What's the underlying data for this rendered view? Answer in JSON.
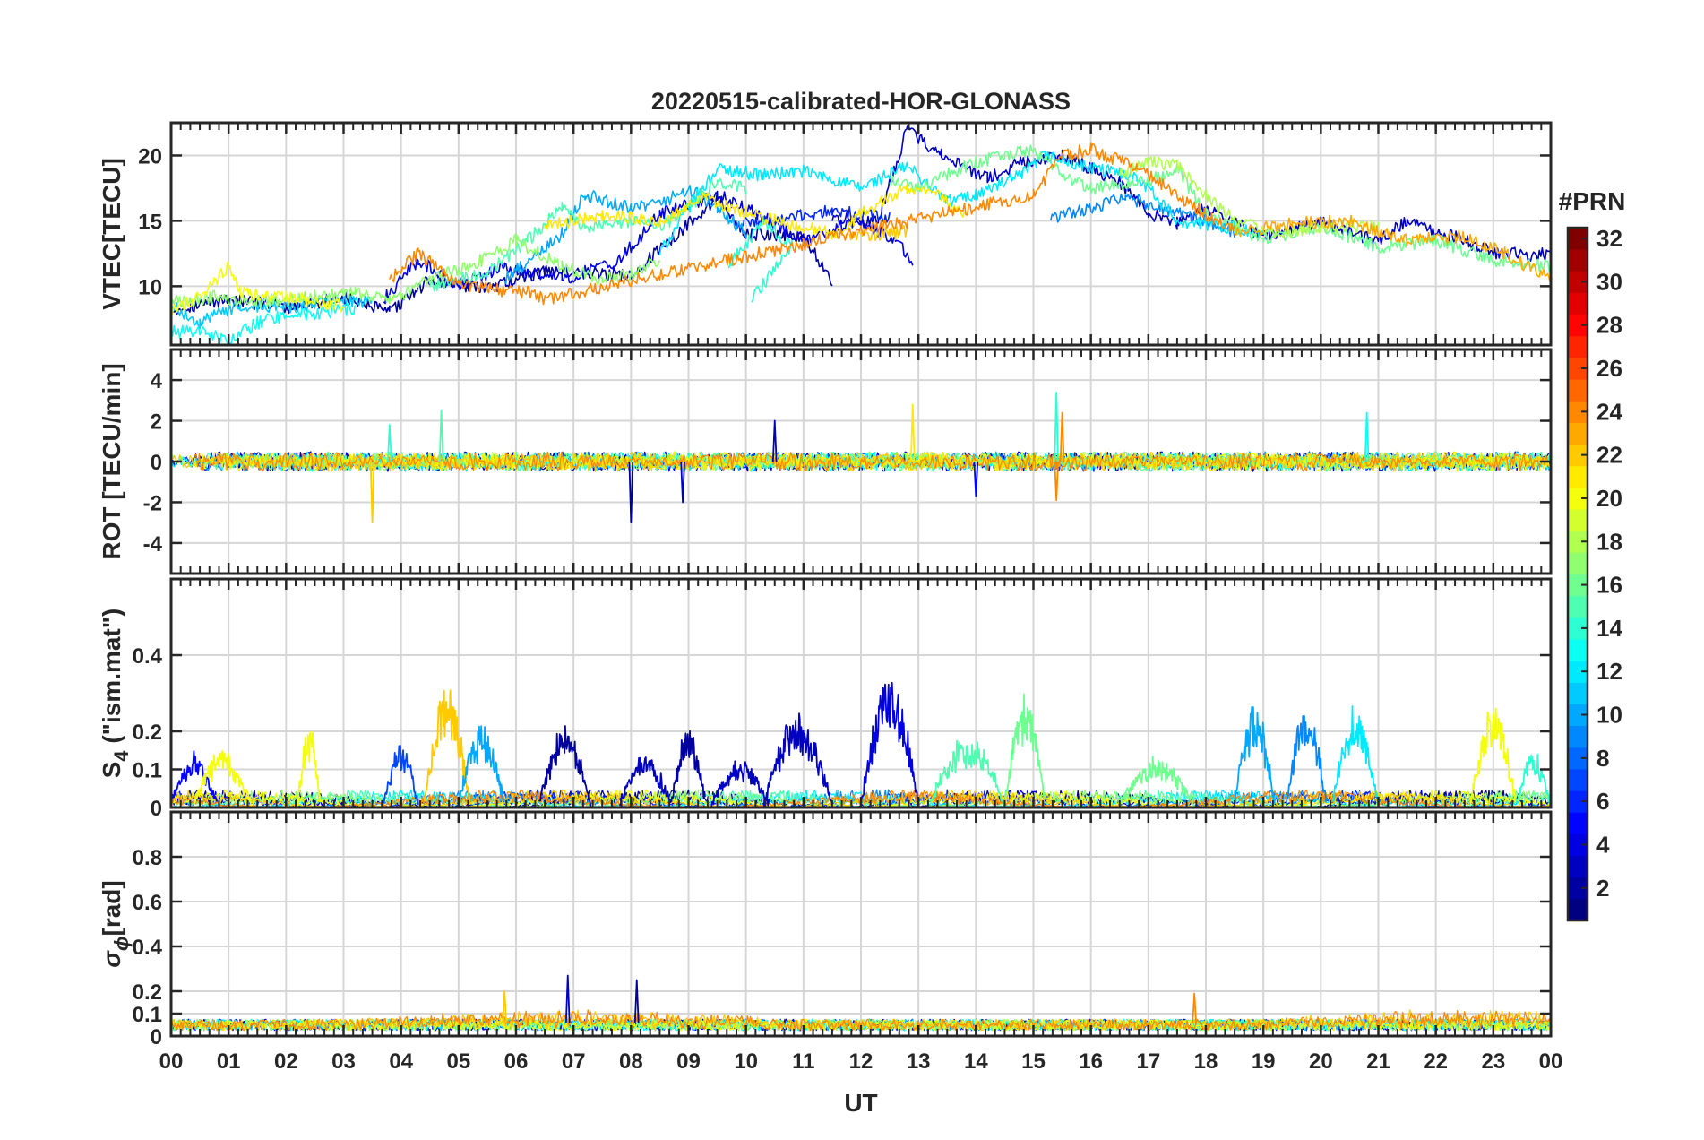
{
  "figure": {
    "title": "20220515-calibrated-HOR-GLONASS",
    "xlabel": "UT"
  },
  "chart_data": [
    {
      "type": "line",
      "panel": "vtec",
      "ylabel": "VTEC[TECU]",
      "ylim": [
        5.5,
        22.5
      ],
      "yticks": [
        10,
        15,
        20
      ],
      "xlim": [
        0,
        24
      ],
      "xtick_labels": [
        "00",
        "01",
        "02",
        "03",
        "04",
        "05",
        "06",
        "07",
        "08",
        "09",
        "10",
        "11",
        "12",
        "13",
        "14",
        "15",
        "16",
        "17",
        "18",
        "19",
        "20",
        "21",
        "22",
        "23",
        "00"
      ],
      "grid": true,
      "series": [
        {
          "prn": 2,
          "points": [
            [
              0,
              8.2
            ],
            [
              1,
              9.0
            ],
            [
              2,
              8.4
            ],
            [
              3,
              9.1
            ],
            [
              3.8,
              8.0
            ],
            [
              4.5,
              10.5
            ],
            [
              5.5,
              9.8
            ],
            [
              6.5,
              11.2
            ],
            [
              7.5,
              11.0
            ],
            [
              8,
              10.8
            ],
            [
              9.5,
              16.8
            ],
            [
              10,
              14.0
            ],
            [
              11,
              13.8
            ],
            [
              11.5,
              10.5
            ]
          ]
        },
        {
          "prn": 3,
          "points": [
            [
              11.5,
              15.2
            ],
            [
              12.3,
              15.0
            ],
            [
              12.8,
              22.0
            ],
            [
              13.4,
              20.0
            ],
            [
              14.2,
              18.2
            ],
            [
              14.8,
              19.5
            ],
            [
              15.5,
              20.0
            ],
            [
              16.5,
              18.0
            ],
            [
              17,
              15.6
            ],
            [
              17.5,
              14.8
            ],
            [
              18,
              16.0
            ],
            [
              19,
              13.8
            ],
            [
              20,
              14.9
            ],
            [
              21,
              13.4
            ],
            [
              21.5,
              15.0
            ],
            [
              22.5,
              13.5
            ],
            [
              23,
              12.5
            ],
            [
              24,
              12.4
            ]
          ]
        },
        {
          "prn": 4,
          "points": [
            [
              3.7,
              9.0
            ],
            [
              4.3,
              12.0
            ],
            [
              5,
              10.0
            ],
            [
              5.8,
              11.5
            ],
            [
              6.8,
              10.5
            ],
            [
              7.8,
              12.0
            ],
            [
              8.5,
              15.5
            ],
            [
              9.5,
              17.0
            ],
            [
              10.2,
              15.5
            ],
            [
              11,
              13.5
            ],
            [
              12,
              15.0
            ],
            [
              12.6,
              13.5
            ],
            [
              12.9,
              12.0
            ]
          ]
        },
        {
          "prn": 6,
          "points": [
            [
              9.8,
              14.8
            ],
            [
              10.5,
              15.0
            ],
            [
              11.5,
              15.8
            ],
            [
              12.5,
              15.2
            ]
          ]
        },
        {
          "prn": 9,
          "points": [
            [
              15.3,
              15.2
            ],
            [
              16,
              16.0
            ],
            [
              16.6,
              16.8
            ],
            [
              17.2,
              16.0
            ],
            [
              18,
              15.0
            ],
            [
              18.5,
              14.0
            ]
          ]
        },
        {
          "prn": 10,
          "points": [
            [
              5.8,
              10.5
            ],
            [
              6.8,
              14.0
            ],
            [
              7.2,
              17.0
            ],
            [
              8,
              16.0
            ],
            [
              8.5,
              16.2
            ],
            [
              9,
              17.5
            ],
            [
              9.5,
              16.0
            ],
            [
              10,
              14.0
            ]
          ]
        },
        {
          "prn": 11,
          "points": [
            [
              0,
              8.5
            ],
            [
              0.5,
              7.2
            ],
            [
              1.2,
              8.6
            ],
            [
              2,
              8.4
            ],
            [
              3,
              8.8
            ],
            [
              3.5,
              8.8
            ]
          ]
        },
        {
          "prn": 12,
          "points": [
            [
              8.5,
              12.5
            ],
            [
              9,
              16.0
            ],
            [
              9.5,
              19.0
            ],
            [
              10.3,
              18.5
            ],
            [
              11,
              18.8
            ],
            [
              12,
              17.5
            ],
            [
              12.8,
              19.2
            ],
            [
              13.5,
              16.5
            ],
            [
              14,
              17.0
            ],
            [
              14.8,
              18.5
            ],
            [
              15.2,
              20.0
            ],
            [
              16,
              19.0
            ],
            [
              16.8,
              18.5
            ],
            [
              17.5,
              15.0
            ],
            [
              18.5,
              14.5
            ],
            [
              19,
              13.8
            ]
          ]
        },
        {
          "prn": 13,
          "points": [
            [
              0,
              6.5
            ],
            [
              0.6,
              6.6
            ],
            [
              1,
              5.8
            ],
            [
              1.5,
              7.2
            ],
            [
              2,
              7.8
            ],
            [
              2.7,
              8.0
            ],
            [
              3.2,
              8.3
            ]
          ]
        },
        {
          "prn": 14,
          "points": [
            [
              9.7,
              11.5
            ],
            [
              10.3,
              15.0
            ],
            [
              10.8,
              13.0
            ],
            [
              10.1,
              9.0
            ]
          ]
        },
        {
          "prn": 15,
          "points": [
            [
              4.5,
              10.0
            ],
            [
              5.5,
              11.0
            ],
            [
              6.2,
              13.5
            ],
            [
              6.8,
              16.0
            ],
            [
              7.2,
              14.5
            ],
            [
              8,
              15.0
            ],
            [
              8.5,
              14.5
            ],
            [
              9,
              16.0
            ],
            [
              9.5,
              18.0
            ],
            [
              10,
              17.5
            ]
          ]
        },
        {
          "prn": 16,
          "points": [
            [
              12.5,
              18.0
            ],
            [
              13,
              17.5
            ],
            [
              13.5,
              18.5
            ],
            [
              14,
              19.5
            ],
            [
              14.5,
              20.0
            ],
            [
              15,
              20.5
            ],
            [
              15.5,
              18.5
            ],
            [
              16,
              17.5
            ],
            [
              17,
              18.0
            ],
            [
              17.5,
              19.0
            ],
            [
              18,
              15.5
            ],
            [
              19,
              13.5
            ],
            [
              20,
              14.5
            ],
            [
              21,
              13.0
            ],
            [
              22,
              13.5
            ],
            [
              23,
              12.0
            ],
            [
              24,
              11.5
            ]
          ]
        },
        {
          "prn": 17,
          "points": [
            [
              0,
              8.8
            ],
            [
              0.8,
              9.2
            ],
            [
              1.5,
              8.8
            ],
            [
              2.5,
              9.2
            ],
            [
              3.2,
              9.5
            ],
            [
              3.8,
              8.8
            ],
            [
              4.5,
              10.5
            ],
            [
              5.2,
              11.5
            ],
            [
              6,
              13.5
            ],
            [
              6.8,
              11.5
            ],
            [
              7.5,
              10.5
            ],
            [
              8,
              11.0
            ],
            [
              8.5,
              12.0
            ]
          ]
        },
        {
          "prn": 18,
          "points": [
            [
              16.5,
              18.5
            ],
            [
              17,
              19.5
            ],
            [
              17.5,
              19.2
            ],
            [
              18,
              17.0
            ],
            [
              18.5,
              15.0
            ],
            [
              19.3,
              14.0
            ],
            [
              20,
              14.5
            ],
            [
              21,
              14.5
            ]
          ]
        },
        {
          "prn": 20,
          "points": [
            [
              0,
              8.0
            ],
            [
              0.6,
              9.5
            ],
            [
              1,
              11.5
            ],
            [
              1.2,
              9.5
            ],
            [
              2,
              9.2
            ],
            [
              3,
              8.5
            ]
          ]
        },
        {
          "prn": 21,
          "points": [
            [
              6.5,
              14.5
            ],
            [
              7.5,
              15.5
            ],
            [
              8.5,
              15.0
            ],
            [
              9.3,
              16.8
            ],
            [
              9.8,
              15.8
            ],
            [
              10.5,
              15.0
            ],
            [
              11.5,
              14.0
            ],
            [
              12,
              15.5
            ],
            [
              12.8,
              17.5
            ],
            [
              13.3,
              17.2
            ],
            [
              13.8,
              15.5
            ]
          ]
        },
        {
          "prn": 22,
          "points": [
            [
              11.8,
              14.0
            ],
            [
              12.5,
              14.0
            ],
            [
              12.8,
              14.2
            ]
          ]
        },
        {
          "prn": 23,
          "points": [
            [
              18.5,
              14.0
            ],
            [
              19.5,
              14.8
            ],
            [
              20.5,
              15.0
            ],
            [
              21.5,
              13.5
            ],
            [
              22.5,
              13.8
            ],
            [
              23.2,
              12.5
            ],
            [
              24,
              10.5
            ]
          ]
        },
        {
          "prn": 24,
          "points": [
            [
              3.8,
              10.5
            ],
            [
              4.3,
              12.5
            ],
            [
              5,
              10.2
            ],
            [
              5.5,
              9.8
            ],
            [
              6.2,
              9.5
            ],
            [
              6.5,
              9.0
            ],
            [
              15.0,
              17.0
            ],
            [
              15.5,
              20.0
            ],
            [
              16,
              20.5
            ],
            [
              16.8,
              19.0
            ],
            [
              17.5,
              17.0
            ],
            [
              18,
              15.5
            ],
            [
              18.5,
              14.3
            ]
          ]
        }
      ]
    },
    {
      "type": "line",
      "panel": "rot",
      "ylabel": "ROT [TECU/min]",
      "ylim": [
        -5.5,
        5.5
      ],
      "yticks": [
        -4,
        -2,
        0,
        2,
        4
      ],
      "xlim": [
        0,
        24
      ],
      "grid": true,
      "baseline": 0,
      "noise_amplitude": 0.35,
      "spikes": [
        {
          "x": 3.5,
          "y": -3.0,
          "prn": 22
        },
        {
          "x": 3.8,
          "y": 1.8,
          "prn": 14
        },
        {
          "x": 4.7,
          "y": 2.5,
          "prn": 15
        },
        {
          "x": 8.0,
          "y": -3.0,
          "prn": 2
        },
        {
          "x": 8.9,
          "y": -2.0,
          "prn": 3
        },
        {
          "x": 10.5,
          "y": 2.0,
          "prn": 3
        },
        {
          "x": 12.9,
          "y": 2.8,
          "prn": 21
        },
        {
          "x": 14.0,
          "y": -1.7,
          "prn": 5
        },
        {
          "x": 15.4,
          "y": 3.4,
          "prn": 14
        },
        {
          "x": 15.4,
          "y": -1.9,
          "prn": 24
        },
        {
          "x": 15.5,
          "y": 2.4,
          "prn": 24
        },
        {
          "x": 20.8,
          "y": 2.4,
          "prn": 13
        }
      ]
    },
    {
      "type": "line",
      "panel": "s4",
      "ylabel_main": "S",
      "ylabel_sub": "4",
      "ylabel_rest": " (\"ism.mat\")",
      "ylim": [
        0,
        0.6
      ],
      "yticks": [
        0,
        0.1,
        0.2,
        0.4
      ],
      "ytick_labels": [
        "0",
        "0.1",
        "0.2",
        "0.4"
      ],
      "xlim": [
        0,
        24
      ],
      "grid": true,
      "noise_level": 0.03,
      "bursts": [
        {
          "x0": 0.0,
          "x1": 0.8,
          "peak": 0.13,
          "prn": 5
        },
        {
          "x0": 0.4,
          "x1": 1.4,
          "peak": 0.14,
          "prn": 20
        },
        {
          "x0": 2.2,
          "x1": 2.6,
          "peak": 0.21,
          "prn": 20
        },
        {
          "x0": 3.7,
          "x1": 4.3,
          "peak": 0.16,
          "prn": 7
        },
        {
          "x0": 4.4,
          "x1": 5.2,
          "peak": 0.31,
          "prn": 22
        },
        {
          "x0": 5.0,
          "x1": 5.8,
          "peak": 0.21,
          "prn": 10
        },
        {
          "x0": 6.4,
          "x1": 7.3,
          "peak": 0.21,
          "prn": 2
        },
        {
          "x0": 7.8,
          "x1": 8.7,
          "peak": 0.13,
          "prn": 3
        },
        {
          "x0": 8.7,
          "x1": 9.3,
          "peak": 0.2,
          "prn": 2
        },
        {
          "x0": 9.4,
          "x1": 10.4,
          "peak": 0.11,
          "prn": 3
        },
        {
          "x0": 10.3,
          "x1": 11.5,
          "peak": 0.24,
          "prn": 3
        },
        {
          "x0": 12.0,
          "x1": 13.0,
          "peak": 0.34,
          "prn": 4
        },
        {
          "x0": 13.2,
          "x1": 14.5,
          "peak": 0.18,
          "prn": 15
        },
        {
          "x0": 14.5,
          "x1": 15.2,
          "peak": 0.29,
          "prn": 16
        },
        {
          "x0": 16.5,
          "x1": 17.8,
          "peak": 0.12,
          "prn": 16
        },
        {
          "x0": 18.5,
          "x1": 19.2,
          "peak": 0.26,
          "prn": 10
        },
        {
          "x0": 19.4,
          "x1": 20.1,
          "peak": 0.26,
          "prn": 9
        },
        {
          "x0": 20.2,
          "x1": 21.0,
          "peak": 0.26,
          "prn": 12
        },
        {
          "x0": 22.6,
          "x1": 23.4,
          "peak": 0.26,
          "prn": 20
        },
        {
          "x0": 23.4,
          "x1": 24.0,
          "peak": 0.13,
          "prn": 14
        }
      ]
    },
    {
      "type": "line",
      "panel": "sigma_phi",
      "ylabel_main": "σ",
      "ylabel_sub": "ϕ",
      "ylabel_rest": "[rad]",
      "ylim": [
        0,
        1.0
      ],
      "yticks": [
        0,
        0.1,
        0.2,
        0.4,
        0.6,
        0.8
      ],
      "ytick_labels": [
        "0",
        "0.1",
        "0.2",
        "0.4",
        "0.6",
        "0.8"
      ],
      "xlim": [
        0,
        24
      ],
      "grid": true,
      "noise_level": 0.05,
      "spikes": [
        {
          "x": 6.9,
          "y": 0.27,
          "prn": 3
        },
        {
          "x": 8.1,
          "y": 0.25,
          "prn": 2
        },
        {
          "x": 5.8,
          "y": 0.2,
          "prn": 22
        },
        {
          "x": 17.8,
          "y": 0.19,
          "prn": 24
        }
      ]
    }
  ],
  "colorbar": {
    "title": "#PRN",
    "range": [
      1,
      32
    ],
    "ticks": [
      2,
      4,
      6,
      8,
      10,
      12,
      14,
      16,
      18,
      20,
      22,
      24,
      26,
      28,
      30,
      32
    ],
    "colormap": "jet"
  }
}
